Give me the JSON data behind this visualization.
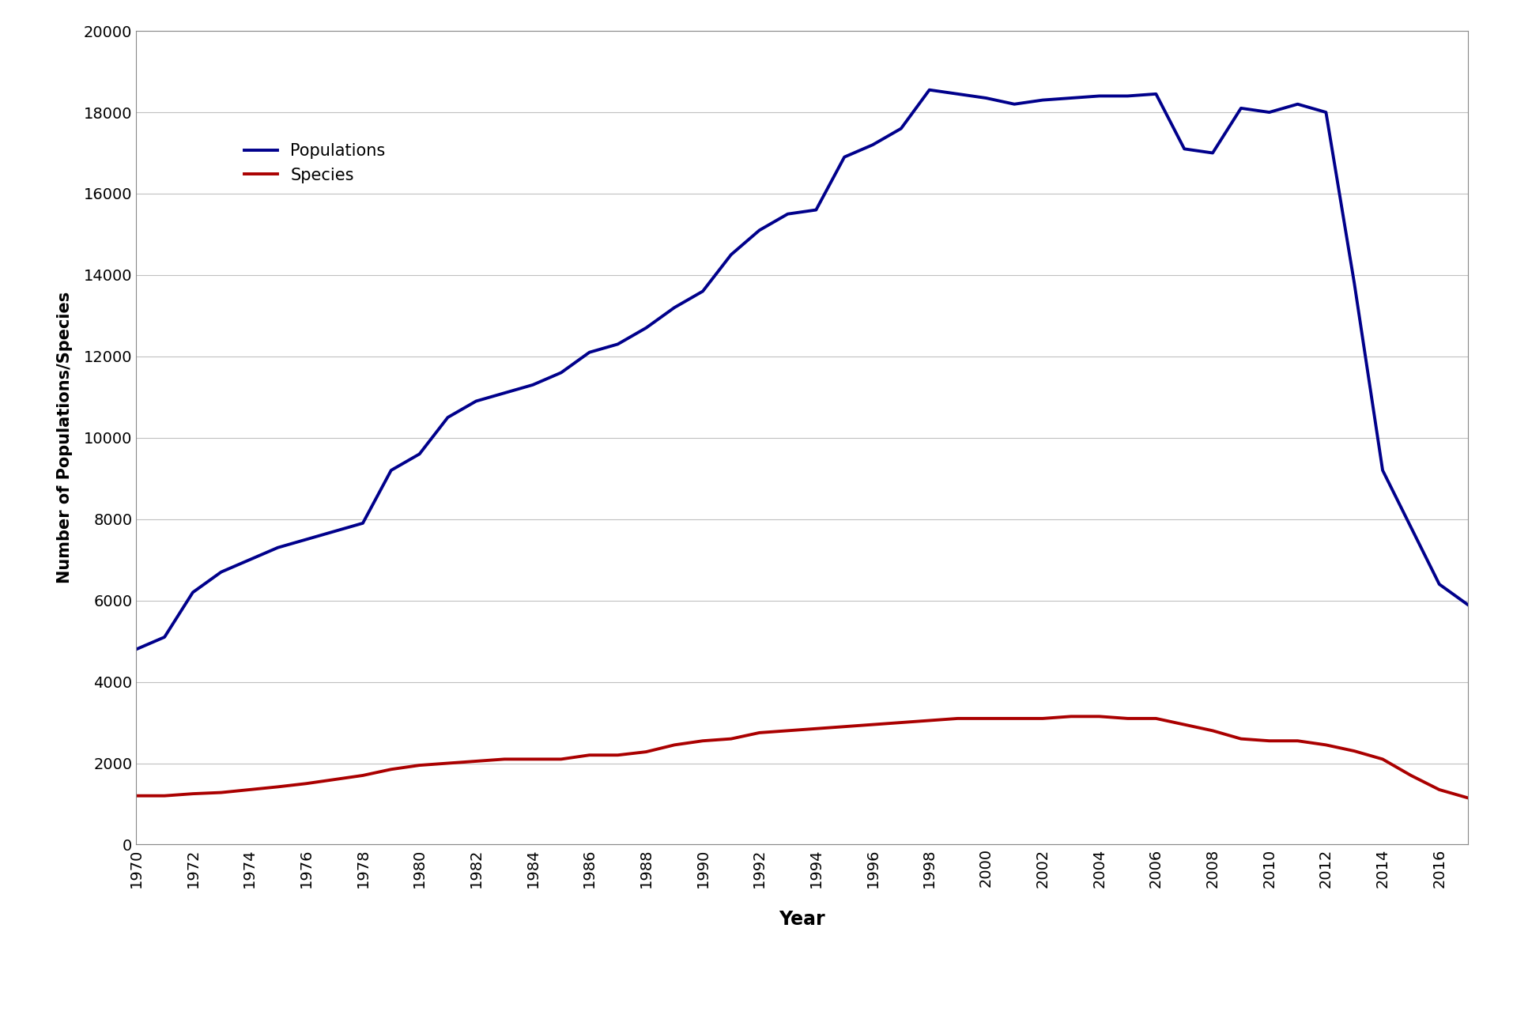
{
  "years": [
    1970,
    1971,
    1972,
    1973,
    1974,
    1975,
    1976,
    1977,
    1978,
    1979,
    1980,
    1981,
    1982,
    1983,
    1984,
    1985,
    1986,
    1987,
    1988,
    1989,
    1990,
    1991,
    1992,
    1993,
    1994,
    1995,
    1996,
    1997,
    1998,
    1999,
    2000,
    2001,
    2002,
    2003,
    2004,
    2005,
    2006,
    2007,
    2008,
    2009,
    2010,
    2011,
    2012,
    2013,
    2014,
    2015,
    2016,
    2017
  ],
  "populations": [
    4800,
    5100,
    6200,
    6700,
    7000,
    7300,
    7500,
    7700,
    7900,
    9200,
    9600,
    10500,
    10900,
    11100,
    11300,
    11600,
    12100,
    12300,
    12700,
    13200,
    13600,
    14500,
    15100,
    15500,
    15600,
    16900,
    17200,
    17600,
    18550,
    18450,
    18350,
    18200,
    18300,
    18350,
    18400,
    18400,
    18450,
    17100,
    17000,
    18100,
    18000,
    18200,
    18000,
    13800,
    9200,
    7800,
    6400,
    5900
  ],
  "species": [
    1200,
    1200,
    1250,
    1280,
    1350,
    1420,
    1500,
    1600,
    1700,
    1850,
    1950,
    2000,
    2050,
    2100,
    2100,
    2100,
    2200,
    2200,
    2280,
    2450,
    2550,
    2600,
    2750,
    2800,
    2850,
    2900,
    2950,
    3000,
    3050,
    3100,
    3100,
    3100,
    3100,
    3150,
    3150,
    3100,
    3100,
    2950,
    2800,
    2600,
    2550,
    2550,
    2450,
    2300,
    2100,
    1700,
    1350,
    1150
  ],
  "populations_color": "#00008B",
  "species_color": "#AA0000",
  "populations_label": "Populations",
  "species_label": "Species",
  "xlabel": "Year",
  "ylabel": "Number of Populations/Species",
  "ylim": [
    0,
    20000
  ],
  "yticks": [
    0,
    2000,
    4000,
    6000,
    8000,
    10000,
    12000,
    14000,
    16000,
    18000,
    20000
  ],
  "line_width": 2.8,
  "background_color": "#ffffff",
  "grid_color": "#c0c0c0"
}
